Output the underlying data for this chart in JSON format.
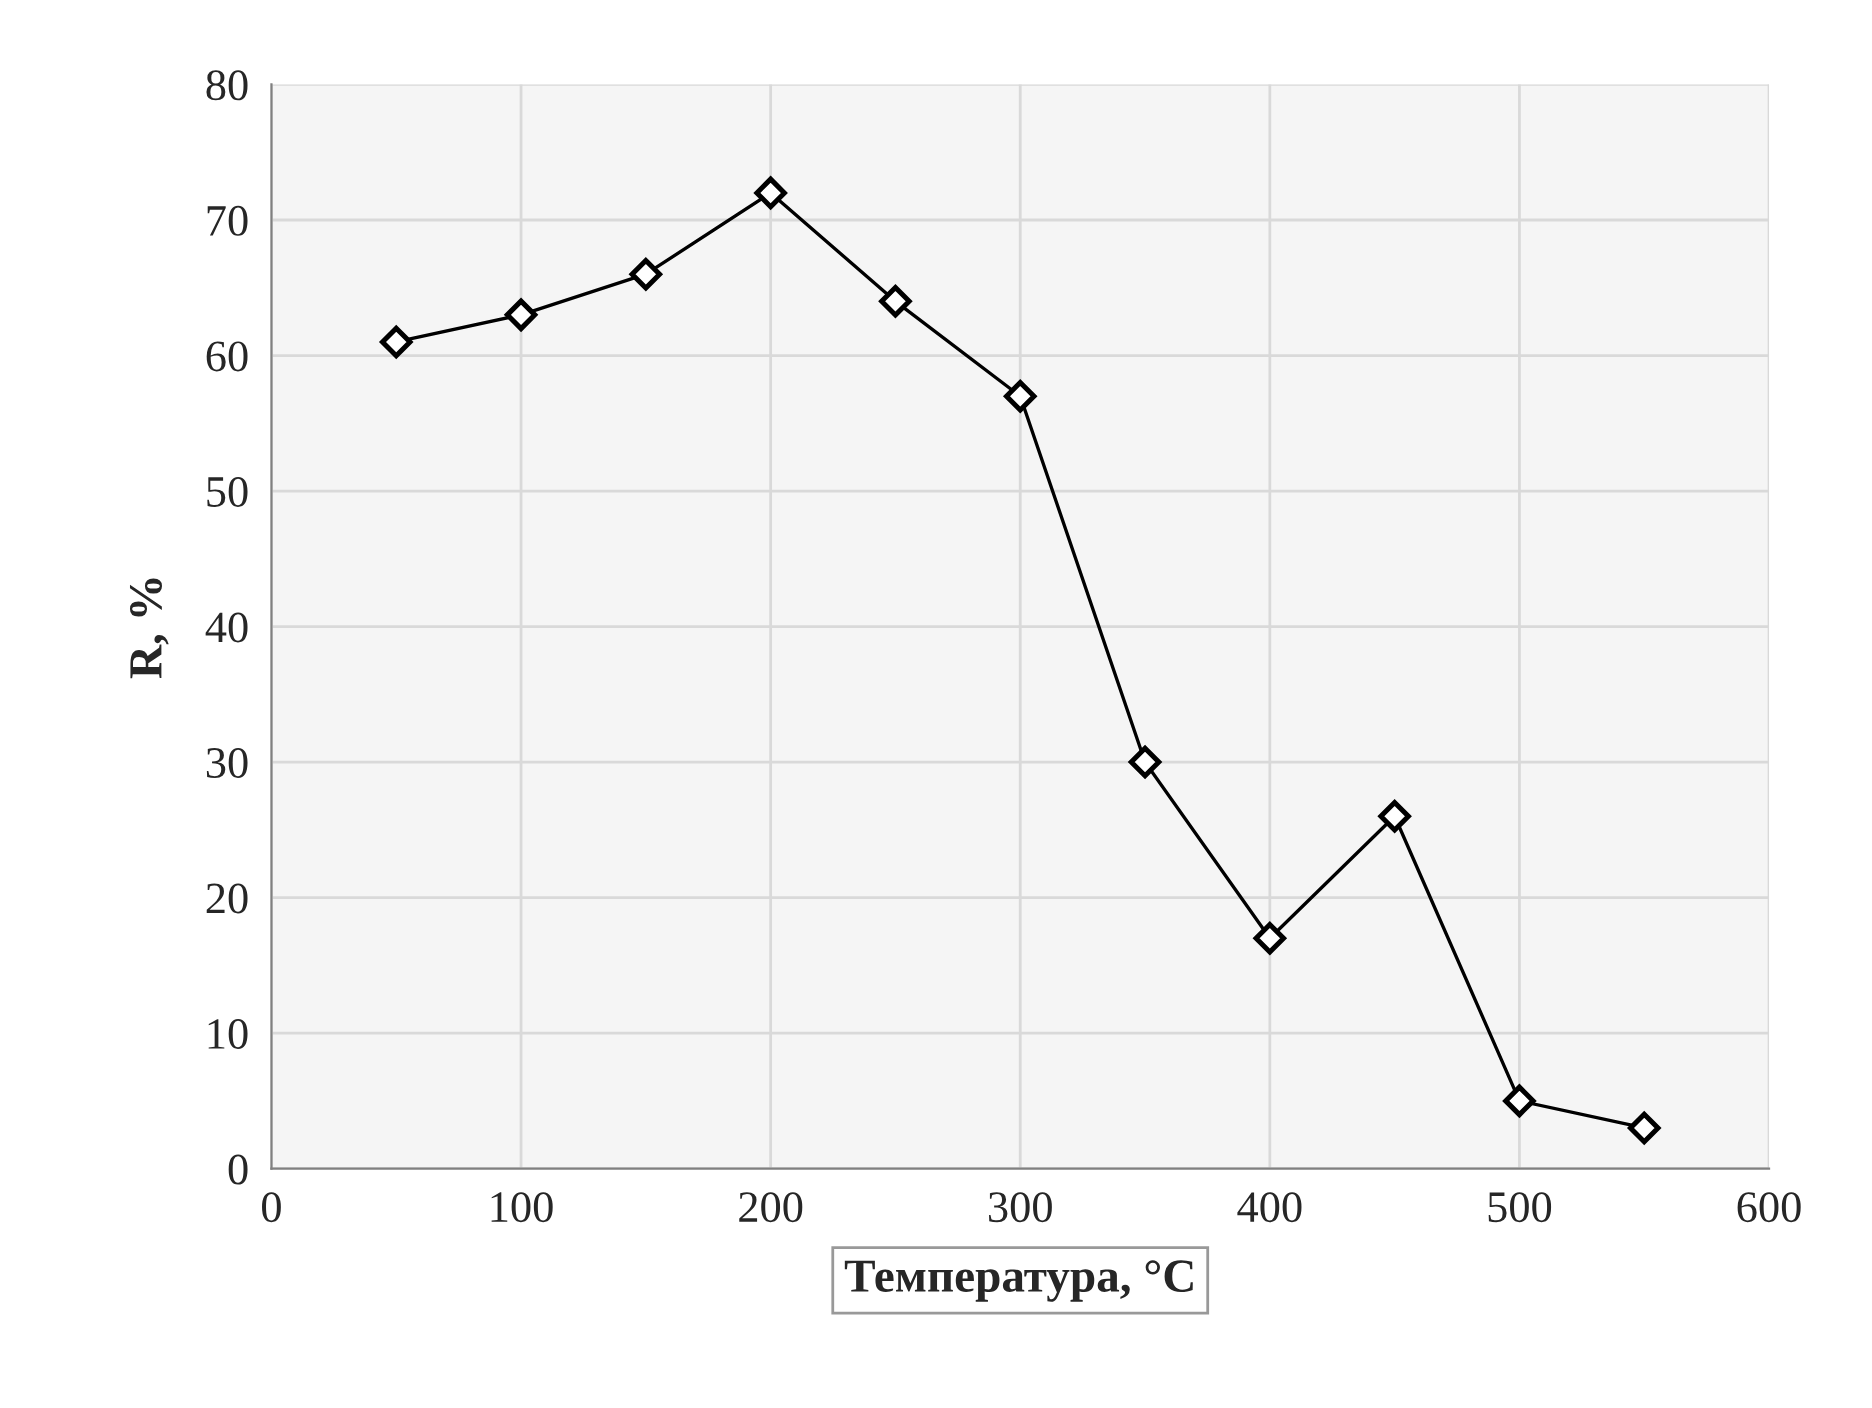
{
  "chart_data": {
    "type": "line",
    "xlabel": "Температура, °C",
    "ylabel": "R, %",
    "x": [
      50,
      100,
      150,
      200,
      250,
      300,
      350,
      400,
      450,
      500,
      550
    ],
    "series": [
      {
        "color": "#000000",
        "values": [
          61,
          63,
          66,
          72,
          64,
          57,
          30,
          17,
          26,
          5,
          3
        ]
      }
    ],
    "xlim": [
      0,
      600
    ],
    "xticks": [
      0,
      100,
      200,
      300,
      400,
      500,
      600
    ],
    "ylim": [
      0,
      80
    ],
    "yticks": [
      0,
      10,
      20,
      30,
      40,
      50,
      60,
      70,
      80
    ],
    "grid": true,
    "marker": "diamond",
    "line_style": "solid"
  }
}
